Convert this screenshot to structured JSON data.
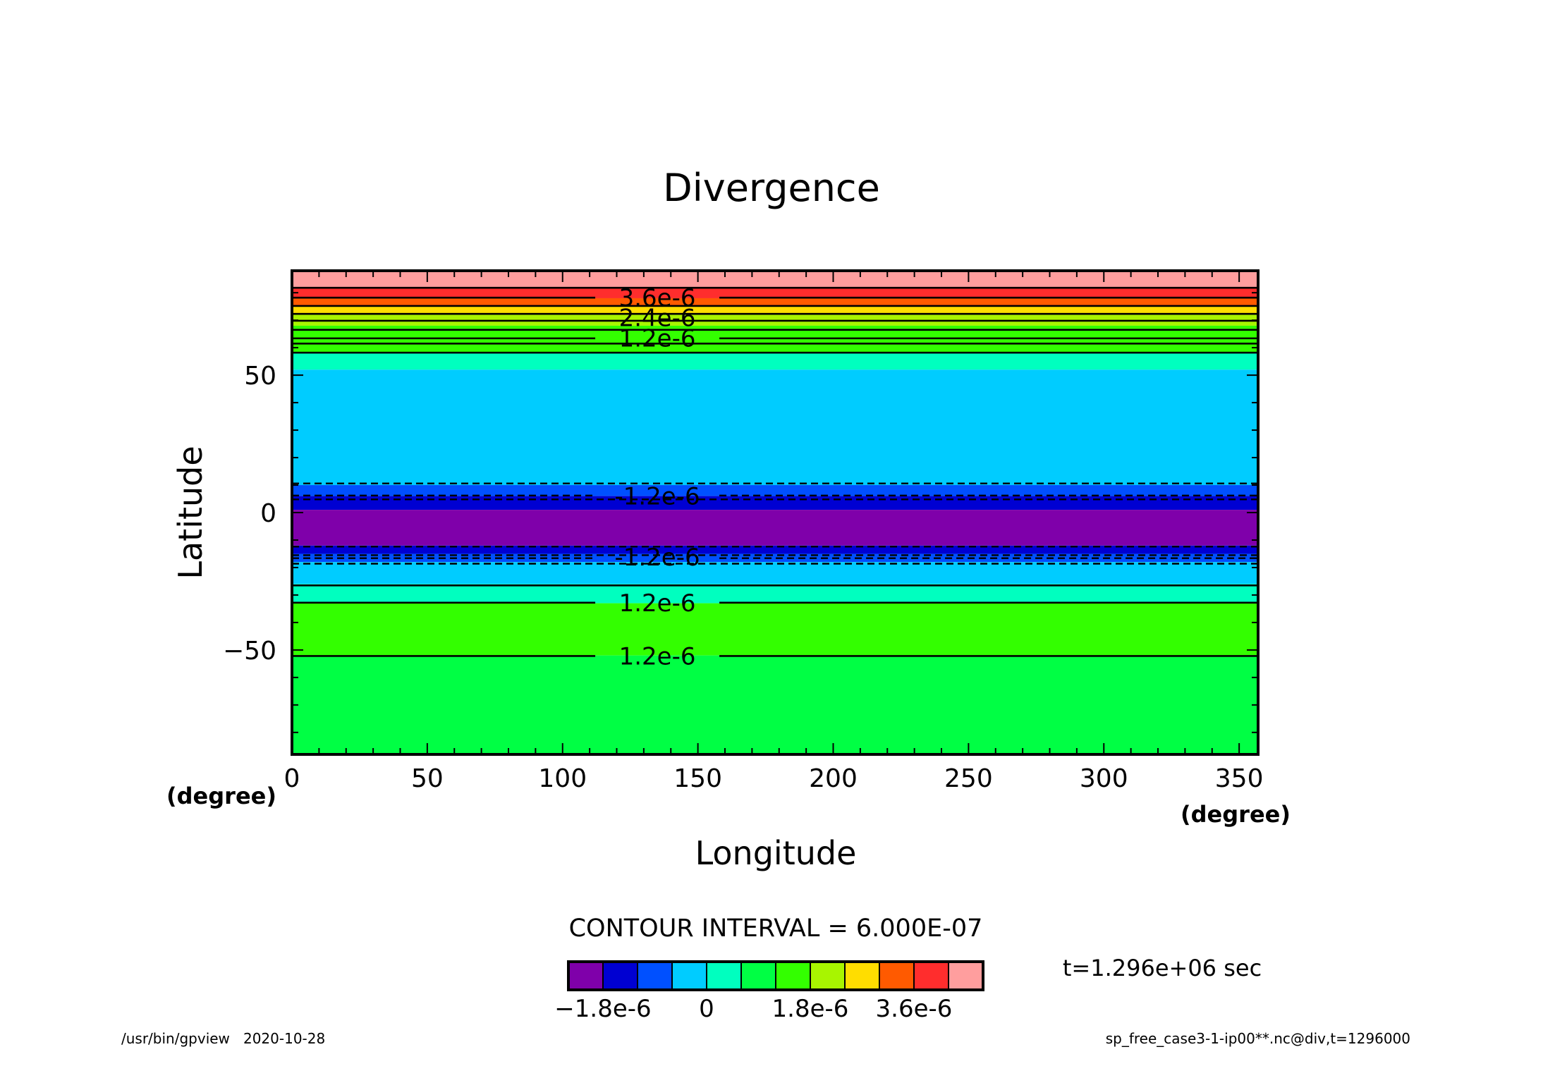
{
  "chart_data": {
    "type": "heatmap",
    "title": "Divergence",
    "xlabel": "Longitude",
    "ylabel": "Latitude",
    "x_unit": "(degree)",
    "xlim": [
      0,
      357
    ],
    "ylim": [
      -88,
      88
    ],
    "x_ticks": [
      0,
      50,
      100,
      150,
      200,
      250,
      300,
      350
    ],
    "y_ticks": [
      -50,
      0,
      50
    ],
    "contour_interval_text": "CONTOUR INTERVAL = 6.000E-07",
    "bands": [
      {
        "lat_min": 82,
        "lat_max": 88,
        "color": "#FF9E9E"
      },
      {
        "lat_min": 78,
        "lat_max": 82,
        "color": "#FF2D2D"
      },
      {
        "lat_min": 75,
        "lat_max": 78,
        "color": "#FF5A00"
      },
      {
        "lat_min": 72,
        "lat_max": 75,
        "color": "#FFDD00"
      },
      {
        "lat_min": 68,
        "lat_max": 72,
        "color": "#A8F500"
      },
      {
        "lat_min": 58,
        "lat_max": 68,
        "color": "#33FF00"
      },
      {
        "lat_min": 52,
        "lat_max": 58,
        "color": "#00FFBF"
      },
      {
        "lat_min": 10,
        "lat_max": 52,
        "color": "#00CCFF"
      },
      {
        "lat_min": 6,
        "lat_max": 10,
        "color": "#0050FF"
      },
      {
        "lat_min": 1,
        "lat_max": 6,
        "color": "#0000D2"
      },
      {
        "lat_min": -12,
        "lat_max": 1,
        "color": "#7F00AA"
      },
      {
        "lat_min": -15,
        "lat_max": -12,
        "color": "#0000D2"
      },
      {
        "lat_min": -18,
        "lat_max": -15,
        "color": "#0050FF"
      },
      {
        "lat_min": -26,
        "lat_max": -18,
        "color": "#00CCFF"
      },
      {
        "lat_min": -33,
        "lat_max": -26,
        "color": "#00FFBF"
      },
      {
        "lat_min": -52,
        "lat_max": -33,
        "color": "#33FF00"
      },
      {
        "lat_min": -88,
        "lat_max": -52,
        "color": "#00FF44"
      }
    ],
    "contours_solid": [
      81.8,
      78.2,
      75.2,
      72.3,
      69.8,
      66.5,
      63.4,
      61.5,
      58.2,
      -26.5,
      -32.8,
      -52.2
    ],
    "contours_dashed": [
      10.6,
      6.2,
      4.8,
      -12.4,
      -15.5,
      -16.6,
      -18.6
    ],
    "contour_labels": [
      {
        "text": "3.6e-6",
        "lon": 135,
        "lat": 78.2
      },
      {
        "text": "2.4e-6",
        "lon": 135,
        "lat": 71.0
      },
      {
        "text": "1.2e-6",
        "lon": 135,
        "lat": 63.5
      },
      {
        "text": "-1.2e-6",
        "lon": 135,
        "lat": 6.0
      },
      {
        "text": "-1.2e-6",
        "lon": 135,
        "lat": -16.2
      },
      {
        "text": "1.2e-6",
        "lon": 135,
        "lat": -32.8
      },
      {
        "text": "1.2e-6",
        "lon": 135,
        "lat": -52.2
      }
    ],
    "colorbar": {
      "colors": [
        "#7F00AA",
        "#0000D2",
        "#0050FF",
        "#00CCFF",
        "#00FFBF",
        "#00FF44",
        "#33FF00",
        "#A8F500",
        "#FFDD00",
        "#FF5A00",
        "#FF2D2D",
        "#FF9E9E"
      ],
      "labels": [
        {
          "text": "-1.8e-6",
          "at": 1
        },
        {
          "text": "0",
          "at": 4
        },
        {
          "text": "1.8e-6",
          "at": 7
        },
        {
          "text": "3.6e-6",
          "at": 10
        }
      ]
    }
  },
  "time_text": "t=1.296e+06 sec",
  "footer_left": "/usr/bin/gpview   2020-10-28",
  "footer_right": "sp_free_case3-1-ip00**.nc@div,t=1296000"
}
